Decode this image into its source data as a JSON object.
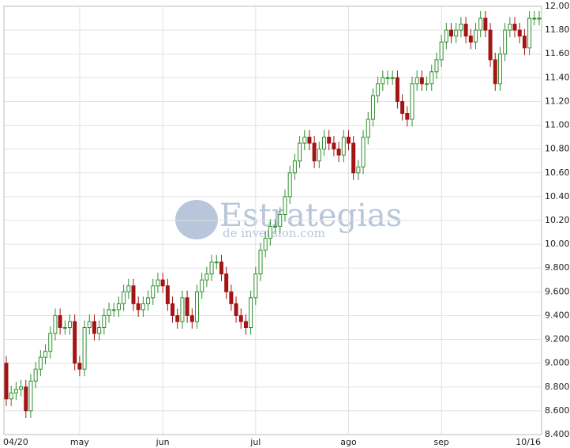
{
  "chart_data": {
    "type": "candlestick",
    "watermark": {
      "title": "Estrategias",
      "subtitle": "de inversion.com"
    },
    "categories": [
      "04/20",
      null,
      null,
      null,
      null,
      null,
      null,
      null,
      null,
      null,
      null,
      null,
      null,
      null,
      null,
      "may",
      null,
      null,
      null,
      null,
      null,
      null,
      null,
      null,
      null,
      null,
      null,
      null,
      null,
      null,
      null,
      null,
      "jun",
      null,
      null,
      null,
      null,
      null,
      null,
      null,
      null,
      null,
      null,
      null,
      null,
      null,
      null,
      null,
      null,
      null,
      null,
      "jul",
      null,
      null,
      null,
      null,
      null,
      null,
      null,
      null,
      null,
      null,
      null,
      null,
      null,
      null,
      null,
      null,
      null,
      null,
      "ago",
      null,
      null,
      null,
      null,
      null,
      null,
      null,
      null,
      null,
      null,
      null,
      null,
      null,
      null,
      null,
      null,
      null,
      null,
      "sep",
      null,
      null,
      null,
      null,
      null,
      null,
      null,
      null,
      null,
      null,
      null,
      null,
      null,
      null,
      null,
      null,
      null,
      null,
      null,
      "10/16"
    ],
    "open": [
      9000,
      8700,
      8750,
      8780,
      8800,
      8600,
      8850,
      8950,
      9050,
      9100,
      9250,
      9400,
      9300,
      9300,
      9350,
      9000,
      8950,
      9300,
      9350,
      9250,
      9300,
      9400,
      9450,
      9450,
      9500,
      9600,
      9650,
      9500,
      9450,
      9500,
      9550,
      9650,
      9700,
      9650,
      9500,
      9400,
      9350,
      9550,
      9400,
      9350,
      9600,
      9700,
      9750,
      9850,
      9850,
      9750,
      9600,
      9500,
      9400,
      9350,
      9300,
      9550,
      9750,
      9950,
      10050,
      10150,
      10150,
      10250,
      10400,
      10600,
      10700,
      10850,
      10900,
      10850,
      10700,
      10800,
      10900,
      10850,
      10800,
      10750,
      10900,
      10850,
      10600,
      10650,
      10900,
      11050,
      11250,
      11350,
      11400,
      11400,
      11400,
      11200,
      11100,
      11050,
      11350,
      11400,
      11350,
      11350,
      11450,
      11550,
      11700,
      11800,
      11750,
      11800,
      11850,
      11750,
      11700,
      11800,
      11900,
      11800,
      11550,
      11350,
      11600,
      11800,
      11850,
      11800,
      11750,
      11650,
      11900,
      11900
    ],
    "high": [
      9060,
      8810,
      8840,
      8860,
      8860,
      8910,
      9010,
      9110,
      9160,
      9310,
      9460,
      9460,
      9360,
      9410,
      9410,
      9060,
      9360,
      9410,
      9410,
      9360,
      9460,
      9510,
      9510,
      9560,
      9660,
      9710,
      9710,
      9560,
      9560,
      9610,
      9710,
      9760,
      9760,
      9710,
      9560,
      9460,
      9610,
      9610,
      9460,
      9660,
      9760,
      9810,
      9910,
      9910,
      9910,
      9810,
      9660,
      9560,
      9460,
      9410,
      9610,
      9810,
      10010,
      10110,
      10210,
      10210,
      10310,
      10460,
      10660,
      10760,
      10910,
      10960,
      10960,
      10910,
      10860,
      10960,
      10960,
      10910,
      10860,
      10960,
      10960,
      10910,
      10710,
      10960,
      11110,
      11310,
      11410,
      11460,
      11460,
      11460,
      11460,
      11260,
      11160,
      11410,
      11460,
      11460,
      11410,
      11510,
      11610,
      11760,
      11860,
      11860,
      11860,
      11910,
      11910,
      11810,
      11860,
      11960,
      11960,
      11860,
      11610,
      11660,
      11860,
      11910,
      11910,
      11860,
      11810,
      11960,
      11960,
      11960
    ],
    "low": [
      8640,
      8640,
      8690,
      8720,
      8540,
      8540,
      8790,
      8890,
      8990,
      9040,
      9190,
      9240,
      9240,
      9240,
      8940,
      8890,
      8890,
      9240,
      9190,
      9190,
      9240,
      9340,
      9390,
      9390,
      9440,
      9540,
      9440,
      9390,
      9390,
      9440,
      9490,
      9590,
      9590,
      9440,
      9340,
      9290,
      9290,
      9340,
      9290,
      9290,
      9540,
      9640,
      9690,
      9790,
      9690,
      9540,
      9440,
      9340,
      9290,
      9240,
      9240,
      9490,
      9690,
      9890,
      9990,
      10090,
      10090,
      10190,
      10340,
      10540,
      10640,
      10790,
      10790,
      10640,
      10640,
      10740,
      10790,
      10740,
      10690,
      10690,
      10790,
      10540,
      10540,
      10590,
      10840,
      10990,
      11190,
      11290,
      11340,
      11340,
      11140,
      11040,
      10990,
      10990,
      11290,
      11290,
      11290,
      11290,
      11390,
      11490,
      11640,
      11690,
      11690,
      11740,
      11690,
      11640,
      11640,
      11740,
      11740,
      11490,
      11290,
      11290,
      11540,
      11740,
      11740,
      11690,
      11590,
      11590,
      11840,
      11840
    ],
    "close": [
      8700,
      8750,
      8780,
      8800,
      8600,
      8850,
      8950,
      9050,
      9100,
      9250,
      9400,
      9300,
      9300,
      9350,
      9000,
      8950,
      9300,
      9350,
      9250,
      9300,
      9400,
      9450,
      9450,
      9500,
      9600,
      9650,
      9500,
      9450,
      9500,
      9550,
      9650,
      9700,
      9650,
      9500,
      9400,
      9350,
      9550,
      9400,
      9350,
      9600,
      9700,
      9750,
      9850,
      9850,
      9750,
      9600,
      9500,
      9400,
      9350,
      9300,
      9550,
      9750,
      9950,
      10050,
      10150,
      10150,
      10250,
      10400,
      10600,
      10700,
      10850,
      10900,
      10850,
      10700,
      10800,
      10900,
      10850,
      10800,
      10750,
      10900,
      10850,
      10600,
      10650,
      10900,
      11050,
      11250,
      11350,
      11400,
      11400,
      11400,
      11200,
      11100,
      11050,
      11350,
      11400,
      11350,
      11350,
      11450,
      11550,
      11700,
      11800,
      11750,
      11800,
      11850,
      11750,
      11700,
      11800,
      11900,
      11800,
      11550,
      11350,
      11600,
      11800,
      11850,
      11800,
      11750,
      11650,
      11900,
      11900,
      11900
    ],
    "up_color": "#2f8f2f",
    "down_color": "#a31414",
    "ylim": [
      8400,
      12000
    ],
    "yticks": [
      {
        "value": 8400,
        "label": "8.400"
      },
      {
        "value": 8600,
        "label": "8.600"
      },
      {
        "value": 8800,
        "label": "8.800"
      },
      {
        "value": 9000,
        "label": "9.000"
      },
      {
        "value": 9200,
        "label": "9.200"
      },
      {
        "value": 9400,
        "label": "9.400"
      },
      {
        "value": 9600,
        "label": "9.600"
      },
      {
        "value": 9800,
        "label": "9.800"
      },
      {
        "value": 10000,
        "label": "10.000"
      },
      {
        "value": 10200,
        "label": "10.200"
      },
      {
        "value": 10400,
        "label": "10.400"
      },
      {
        "value": 10600,
        "label": "10.600"
      },
      {
        "value": 10800,
        "label": "10.800"
      },
      {
        "value": 11000,
        "label": "11.000"
      },
      {
        "value": 11200,
        "label": "11.200"
      },
      {
        "value": 11400,
        "label": "11.400"
      },
      {
        "value": 11600,
        "label": "11.600"
      },
      {
        "value": 11800,
        "label": "11.800"
      },
      {
        "value": 12000,
        "label": "12.000"
      }
    ],
    "grid": true
  }
}
